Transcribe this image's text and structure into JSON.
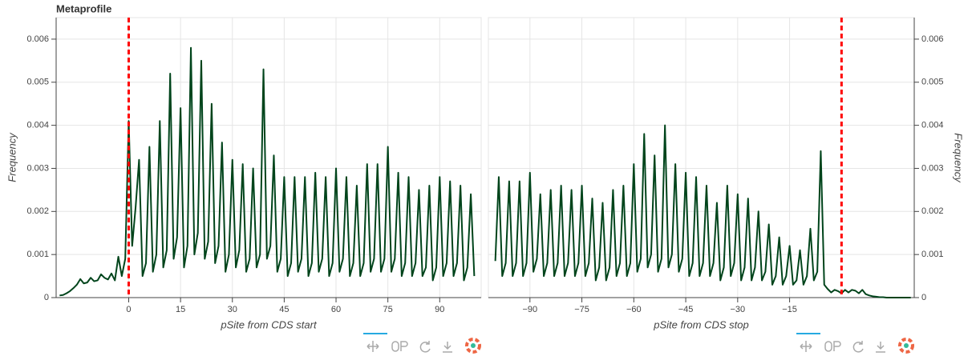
{
  "chart_data": [
    {
      "type": "line",
      "title": "Metaprofile",
      "xlabel": "pSite from CDS start",
      "ylabel": "Frequency",
      "yaxis_side": "left",
      "grid": true,
      "xlim": [
        -21,
        102
      ],
      "ylim": [
        0,
        0.0065
      ],
      "xticks": [
        0,
        15,
        30,
        45,
        60,
        75,
        90
      ],
      "yticks": [
        0,
        0.001,
        0.002,
        0.003,
        0.004,
        0.005,
        0.006
      ],
      "vline": {
        "x": 0,
        "color": "#ff0000"
      },
      "x": [
        -20,
        -19,
        -18,
        -17,
        -16,
        -15,
        -14,
        -13,
        -12,
        -11,
        -10,
        -9,
        -8,
        -7,
        -6,
        -5,
        -4,
        -3,
        -2,
        -1,
        0,
        1,
        2,
        3,
        4,
        5,
        6,
        7,
        8,
        9,
        10,
        11,
        12,
        13,
        14,
        15,
        16,
        17,
        18,
        19,
        20,
        21,
        22,
        23,
        24,
        25,
        26,
        27,
        28,
        29,
        30,
        31,
        32,
        33,
        34,
        35,
        36,
        37,
        38,
        39,
        40,
        41,
        42,
        43,
        44,
        45,
        46,
        47,
        48,
        49,
        50,
        51,
        52,
        53,
        54,
        55,
        56,
        57,
        58,
        59,
        60,
        61,
        62,
        63,
        64,
        65,
        66,
        67,
        68,
        69,
        70,
        71,
        72,
        73,
        74,
        75,
        76,
        77,
        78,
        79,
        80,
        81,
        82,
        83,
        84,
        85,
        86,
        87,
        88,
        89,
        90,
        91,
        92,
        93,
        94,
        95,
        96,
        97,
        98,
        99,
        100
      ],
      "series": [
        {
          "name": "pSite",
          "color": "#00441b",
          "values": [
            5e-05,
            6e-05,
            0.0001,
            0.00015,
            0.00022,
            0.0003,
            0.00043,
            0.00033,
            0.00035,
            0.00046,
            0.00038,
            0.0004,
            0.00054,
            0.00046,
            0.00042,
            0.00056,
            0.0004,
            0.00095,
            0.0005,
            0.0009,
            0.0041,
            0.0012,
            0.0021,
            0.0032,
            0.0005,
            0.0008,
            0.0035,
            0.0006,
            0.001,
            0.0041,
            0.0007,
            0.0011,
            0.0052,
            0.0009,
            0.0014,
            0.0044,
            0.0007,
            0.0012,
            0.0058,
            0.001,
            0.0015,
            0.0055,
            0.0009,
            0.0013,
            0.0045,
            0.0008,
            0.0012,
            0.0036,
            0.0006,
            0.001,
            0.0032,
            0.0007,
            0.0011,
            0.0031,
            0.0006,
            0.0009,
            0.003,
            0.0007,
            0.001,
            0.0053,
            0.0009,
            0.0012,
            0.0033,
            0.0006,
            0.0009,
            0.0028,
            0.0005,
            0.0008,
            0.0028,
            0.0006,
            0.0009,
            0.0028,
            0.0005,
            0.0008,
            0.0029,
            0.0006,
            0.0009,
            0.0028,
            0.0005,
            0.0008,
            0.003,
            0.0006,
            0.0009,
            0.0028,
            0.0005,
            0.0008,
            0.0026,
            0.0005,
            0.0008,
            0.0031,
            0.0006,
            0.0009,
            0.0031,
            0.0006,
            0.0009,
            0.0035,
            0.0006,
            0.0009,
            0.0029,
            0.0005,
            0.0008,
            0.0028,
            0.0005,
            0.0008,
            0.0025,
            0.0005,
            0.0007,
            0.0026,
            0.0004,
            0.0007,
            0.0028,
            0.0005,
            0.0008,
            0.0027,
            0.0005,
            0.0008,
            0.0026,
            0.0004,
            0.0007,
            0.0024,
            0.0005
          ]
        }
      ]
    },
    {
      "type": "line",
      "xlabel": "pSite from CDS stop",
      "ylabel": "Frequency",
      "yaxis_side": "right",
      "grid": true,
      "xlim": [
        -102,
        21
      ],
      "ylim": [
        0,
        0.0065
      ],
      "xticks": [
        {
          "value": -90,
          "label": "−90"
        },
        {
          "value": -75,
          "label": "−75"
        },
        {
          "value": -60,
          "label": "−60"
        },
        {
          "value": -45,
          "label": "−45"
        },
        {
          "value": -30,
          "label": "−30"
        },
        {
          "value": -15,
          "label": "−15"
        }
      ],
      "yticks": [
        0,
        0.001,
        0.002,
        0.003,
        0.004,
        0.005,
        0.006
      ],
      "vline": {
        "x": 0,
        "color": "#ff0000"
      },
      "x": [
        -100,
        -99,
        -98,
        -97,
        -96,
        -95,
        -94,
        -93,
        -92,
        -91,
        -90,
        -89,
        -88,
        -87,
        -86,
        -85,
        -84,
        -83,
        -82,
        -81,
        -80,
        -79,
        -78,
        -77,
        -76,
        -75,
        -74,
        -73,
        -72,
        -71,
        -70,
        -69,
        -68,
        -67,
        -66,
        -65,
        -64,
        -63,
        -62,
        -61,
        -60,
        -59,
        -58,
        -57,
        -56,
        -55,
        -54,
        -53,
        -52,
        -51,
        -50,
        -49,
        -48,
        -47,
        -46,
        -45,
        -44,
        -43,
        -42,
        -41,
        -40,
        -39,
        -38,
        -37,
        -36,
        -35,
        -34,
        -33,
        -32,
        -31,
        -30,
        -29,
        -28,
        -27,
        -26,
        -25,
        -24,
        -23,
        -22,
        -21,
        -20,
        -19,
        -18,
        -17,
        -16,
        -15,
        -14,
        -13,
        -12,
        -11,
        -10,
        -9,
        -8,
        -7,
        -6,
        -5,
        -4,
        -3,
        -2,
        -1,
        0,
        1,
        2,
        3,
        4,
        5,
        6,
        7,
        8,
        9,
        10,
        11,
        12,
        13,
        14,
        15,
        16,
        17,
        18,
        19,
        20
      ],
      "series": [
        {
          "name": "pSite",
          "color": "#00441b",
          "values": [
            0.00085,
            0.0028,
            0.0005,
            0.0008,
            0.0027,
            0.0005,
            0.0008,
            0.0027,
            0.0005,
            0.0008,
            0.0029,
            0.0006,
            0.0009,
            0.0024,
            0.0005,
            0.0008,
            0.0025,
            0.0005,
            0.0008,
            0.0026,
            0.0005,
            0.0008,
            0.0025,
            0.0005,
            0.0008,
            0.0026,
            0.0005,
            0.0008,
            0.0023,
            0.0004,
            0.0007,
            0.0022,
            0.0004,
            0.0007,
            0.0025,
            0.0005,
            0.0008,
            0.0026,
            0.0005,
            0.0008,
            0.0031,
            0.0006,
            0.0009,
            0.0038,
            0.0007,
            0.001,
            0.0033,
            0.0006,
            0.0009,
            0.004,
            0.0007,
            0.001,
            0.0031,
            0.0006,
            0.0009,
            0.0029,
            0.0005,
            0.0008,
            0.0028,
            0.0005,
            0.0008,
            0.0026,
            0.0005,
            0.0008,
            0.0022,
            0.0004,
            0.0007,
            0.0026,
            0.0005,
            0.0008,
            0.0024,
            0.0004,
            0.0007,
            0.0023,
            0.0004,
            0.0007,
            0.002,
            0.0004,
            0.0006,
            0.0017,
            0.0003,
            0.0005,
            0.0014,
            0.0003,
            0.0005,
            0.0012,
            0.0003,
            0.0004,
            0.0011,
            0.0003,
            0.0005,
            0.0016,
            0.0004,
            0.0006,
            0.0034,
            0.0003,
            0.0002,
            0.00012,
            0.00018,
            0.00015,
            0.0001,
            0.00018,
            0.00012,
            0.00018,
            0.00016,
            0.0001,
            0.00018,
            8e-05,
            5e-05,
            3e-05,
            2e-05,
            1e-05,
            1e-05,
            0,
            0,
            0,
            0,
            0,
            0,
            0,
            0
          ]
        }
      ]
    }
  ]
}
